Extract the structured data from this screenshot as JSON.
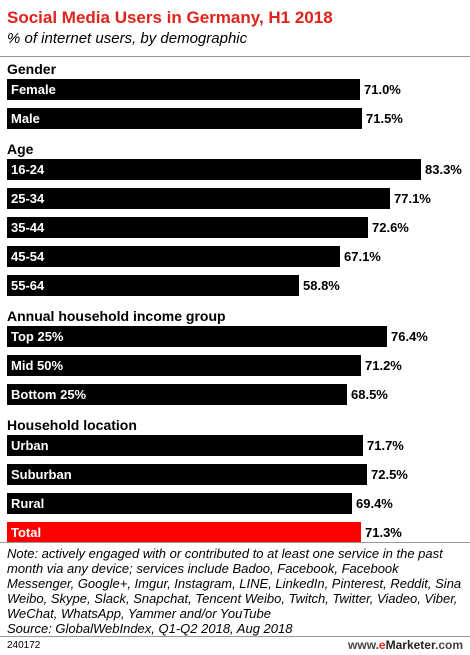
{
  "header": {
    "title": "Social Media Users in Germany, H1 2018",
    "subtitle": "% of internet users, by demographic"
  },
  "chart_data": {
    "type": "bar",
    "orientation": "horizontal",
    "title": "Social Media Users in Germany, H1 2018",
    "subtitle": "% of internet users, by demographic",
    "unit": "%",
    "xlim": [
      0,
      85
    ],
    "grid": false,
    "legend": "none",
    "colors": {
      "bar": "#000000",
      "highlight": "#ff0000"
    },
    "groups": [
      {
        "name": "Gender",
        "items": [
          {
            "label": "Female",
            "value": 71.0,
            "display": "71.0%"
          },
          {
            "label": "Male",
            "value": 71.5,
            "display": "71.5%"
          }
        ]
      },
      {
        "name": "Age",
        "items": [
          {
            "label": "16-24",
            "value": 83.3,
            "display": "83.3%"
          },
          {
            "label": "25-34",
            "value": 77.1,
            "display": "77.1%"
          },
          {
            "label": "35-44",
            "value": 72.6,
            "display": "72.6%"
          },
          {
            "label": "45-54",
            "value": 67.1,
            "display": "67.1%"
          },
          {
            "label": "55-64",
            "value": 58.8,
            "display": "58.8%"
          }
        ]
      },
      {
        "name": "Annual household income group",
        "items": [
          {
            "label": "Top 25%",
            "value": 76.4,
            "display": "76.4%"
          },
          {
            "label": "Mid 50%",
            "value": 71.2,
            "display": "71.2%"
          },
          {
            "label": "Bottom 25%",
            "value": 68.5,
            "display": "68.5%"
          }
        ]
      },
      {
        "name": "Household location",
        "items": [
          {
            "label": "Urban",
            "value": 71.7,
            "display": "71.7%"
          },
          {
            "label": "Suburban",
            "value": 72.5,
            "display": "72.5%"
          },
          {
            "label": "Rural",
            "value": 69.4,
            "display": "69.4%"
          },
          {
            "label": "Total",
            "value": 71.3,
            "display": "71.3%",
            "highlight": true
          }
        ]
      }
    ]
  },
  "footer": {
    "note": "Note: actively engaged with or contributed to at least one service in the past month via any device; services include Badoo, Facebook, Facebook Messenger, Google+, Imgur, Instagram, LINE, LinkedIn, Pinterest, Reddit, Sina Weibo, Skype, Slack, Snapchat, Tencent Weibo, Twitch, Twitter, Viadeo, Viber, WeChat, WhatsApp, Yammer and/or YouTube",
    "source": "Source: GlobalWebIndex, Q1-Q2 2018, Aug 2018",
    "chart_id": "240172",
    "brand_prefix": "www.",
    "brand_e": "e",
    "brand_name": "Marketer",
    "brand_suffix": ".com"
  }
}
